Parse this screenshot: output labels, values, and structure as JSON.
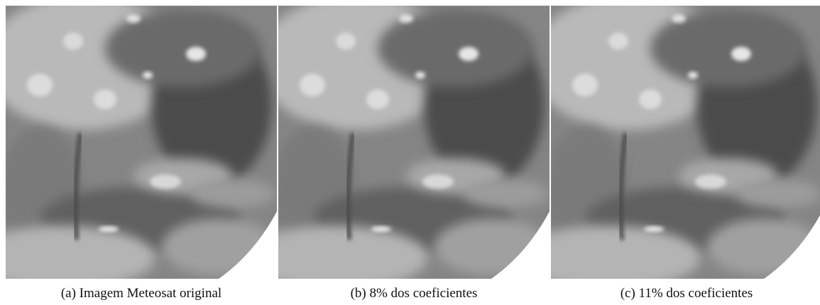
{
  "figures": [
    {
      "caption": "(a) Imagem Meteosat original"
    },
    {
      "caption": "(b) 8% dos coeficientes"
    },
    {
      "caption": "(c) 11% dos coeficientes"
    }
  ]
}
